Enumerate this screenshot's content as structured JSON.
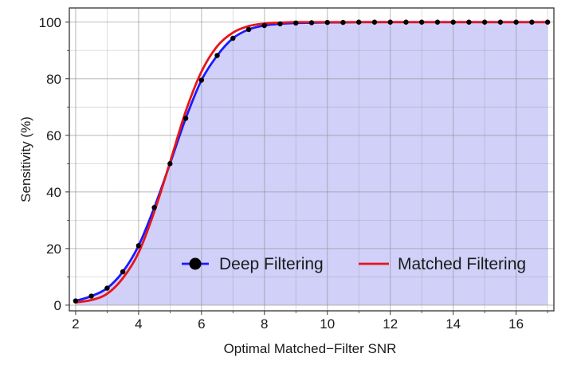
{
  "chart_data": {
    "type": "line",
    "xlabel": "Optimal Matched−Filter SNR",
    "ylabel": "Sensitivity (%)",
    "xlim": [
      1.8,
      17.2
    ],
    "ylim": [
      -2,
      105
    ],
    "x_ticks": [
      "2",
      "4",
      "6",
      "8",
      "10",
      "12",
      "14",
      "16"
    ],
    "y_ticks": [
      "0",
      "20",
      "40",
      "60",
      "80",
      "100"
    ],
    "grid": true,
    "legend_position": "bottom-right",
    "series": [
      {
        "name": "Deep Filtering",
        "color": "#1a1aff",
        "marker": "circle",
        "marker_color": "#000000",
        "fill_color": "#c8c8f8",
        "x": [
          2.0,
          2.5,
          3.0,
          3.5,
          4.0,
          4.5,
          5.0,
          5.5,
          6.0,
          6.5,
          7.0,
          7.5,
          8.0,
          8.5,
          9.0,
          9.5,
          10.0,
          10.5,
          11.0,
          11.5,
          12.0,
          12.5,
          13.0,
          13.5,
          14.0,
          14.5,
          15.0,
          15.5,
          16.0,
          16.5,
          17.0
        ],
        "y": [
          1.5,
          3.2,
          6.0,
          11.8,
          21.0,
          34.5,
          50.0,
          66.0,
          79.5,
          88.2,
          94.3,
          97.4,
          98.8,
          99.4,
          99.7,
          99.8,
          99.9,
          99.9,
          100,
          100,
          100,
          100,
          100,
          100,
          100,
          100,
          100,
          100,
          100,
          100,
          100
        ]
      },
      {
        "name": "Matched Filtering",
        "color": "#e8141a",
        "x": [
          2.0,
          2.5,
          3.0,
          3.5,
          4.0,
          4.5,
          5.0,
          5.5,
          6.0,
          6.5,
          7.0,
          7.5,
          8.0,
          8.5,
          9.0,
          10.0,
          11.0,
          12.0,
          13.0,
          14.0,
          15.0,
          16.0,
          17.0
        ],
        "y": [
          1.0,
          1.8,
          4.0,
          9.5,
          18.5,
          33.0,
          50.5,
          68.5,
          82.5,
          91.5,
          96.3,
          98.6,
          99.5,
          99.8,
          100,
          100,
          100,
          100,
          100,
          100,
          100,
          100,
          100
        ]
      }
    ]
  }
}
